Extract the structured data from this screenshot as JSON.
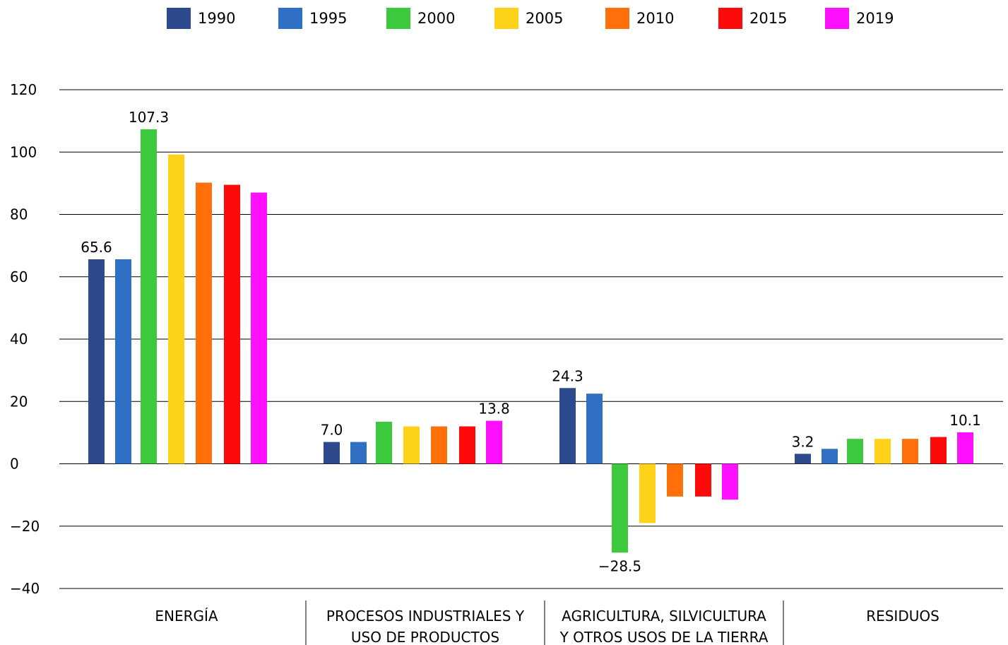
{
  "chart_data": {
    "type": "bar",
    "categories": [
      [
        "ENERGÍA"
      ],
      [
        "PROCESOS INDUSTRIALES Y",
        "USO DE PRODUCTOS"
      ],
      [
        "AGRICULTURA, SILVICULTURA",
        "Y OTROS USOS DE LA TIERRA"
      ],
      [
        "RESIDUOS"
      ]
    ],
    "series": [
      {
        "name": "1990",
        "color": "#2e4a8f",
        "values": [
          65.6,
          7.0,
          24.3,
          3.2
        ]
      },
      {
        "name": "1995",
        "color": "#3070c4",
        "values": [
          65.6,
          7.0,
          22.5,
          4.8
        ]
      },
      {
        "name": "2000",
        "color": "#3dc93d",
        "values": [
          107.3,
          13.5,
          -28.5,
          8.0
        ]
      },
      {
        "name": "2005",
        "color": "#ffd21a",
        "values": [
          99.2,
          12.0,
          -19.0,
          8.0
        ]
      },
      {
        "name": "2010",
        "color": "#ff6f0a",
        "values": [
          90.2,
          12.0,
          -10.5,
          8.0
        ]
      },
      {
        "name": "2015",
        "color": "#ff0a0a",
        "values": [
          89.5,
          12.0,
          -10.5,
          8.6
        ]
      },
      {
        "name": "2019",
        "color": "#ff10ff",
        "values": [
          87.0,
          13.8,
          -11.5,
          10.1
        ]
      }
    ],
    "data_labels": [
      {
        "category": 0,
        "series": 0,
        "text": "65.6"
      },
      {
        "category": 0,
        "series": 2,
        "text": "107.3"
      },
      {
        "category": 1,
        "series": 0,
        "text": "7.0"
      },
      {
        "category": 1,
        "series": 6,
        "text": "13.8"
      },
      {
        "category": 2,
        "series": 0,
        "text": "24.3"
      },
      {
        "category": 2,
        "series": 2,
        "text": "−28.5"
      },
      {
        "category": 3,
        "series": 0,
        "text": "3.2"
      },
      {
        "category": 3,
        "series": 6,
        "text": "10.1"
      }
    ],
    "yticks": [
      120,
      100,
      80,
      60,
      40,
      20,
      0,
      -20,
      -40
    ],
    "ytick_labels": [
      "120",
      "100",
      "80",
      "60",
      "40",
      "20",
      "0",
      "−20",
      "−40"
    ],
    "ylim": [
      -40,
      120
    ],
    "grid": "horizontal",
    "legend_position": "top"
  }
}
